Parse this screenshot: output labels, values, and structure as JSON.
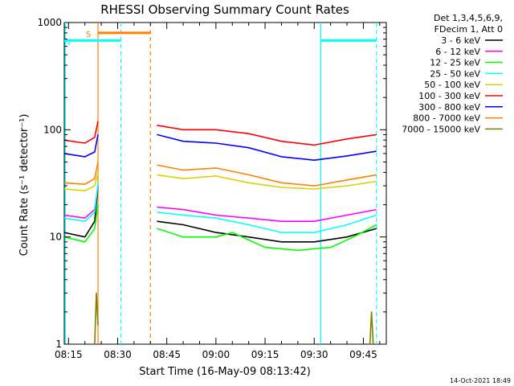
{
  "chart_data": {
    "type": "line",
    "title": "RHESSI Observing Summary Count Rates",
    "xlabel": "Start Time (16-May-09 08:13:42)",
    "ylabel": "Count Rate (s⁻¹ detector⁻¹)",
    "y_scale": "log",
    "ylim": [
      1,
      1000
    ],
    "xlim": [
      "08:13:42",
      "09:52:00"
    ],
    "x_ticks": [
      "08:15",
      "08:30",
      "08:45",
      "09:00",
      "09:15",
      "09:30",
      "09:45"
    ],
    "y_ticks": [
      "1",
      "10",
      "100",
      "1000"
    ],
    "legend_position": "top-right",
    "legend_header": [
      "Det 1,3,4,5,6,9,",
      "FDecim 1, Att 0"
    ],
    "legend": [
      {
        "name": "3 - 6 keV",
        "color": "#000000"
      },
      {
        "name": "6 - 12 keV",
        "color": "#ff00ff"
      },
      {
        "name": "12 - 25 keV",
        "color": "#00ff00"
      },
      {
        "name": "25 - 50 keV",
        "color": "#00ffff"
      },
      {
        "name": "50 - 100 keV",
        "color": "#d4d400"
      },
      {
        "name": "100 - 300 keV",
        "color": "#ff0000"
      },
      {
        "name": "300 - 800 keV",
        "color": "#0000ff"
      },
      {
        "name": "800 - 7000 keV",
        "color": "#ff8000"
      },
      {
        "name": "7000 - 15000 keV",
        "color": "#808000"
      }
    ],
    "series": [
      {
        "name": "3 - 6 keV",
        "color": "#000000",
        "segments": [
          [
            [
              "08:13:42",
              11
            ],
            [
              "08:20",
              10
            ],
            [
              "08:23",
              14
            ],
            [
              "08:24",
              30
            ]
          ],
          [
            [
              "08:42",
              14
            ],
            [
              "08:50",
              13
            ],
            [
              "09:00",
              11
            ],
            [
              "09:10",
              10
            ],
            [
              "09:20",
              9
            ],
            [
              "09:30",
              9
            ],
            [
              "09:40",
              10
            ],
            [
              "09:49",
              12
            ]
          ]
        ]
      },
      {
        "name": "6 - 12 keV",
        "color": "#ff00ff",
        "segments": [
          [
            [
              "08:13:42",
              16
            ],
            [
              "08:20",
              15
            ],
            [
              "08:23",
              18
            ],
            [
              "08:24",
              30
            ]
          ],
          [
            [
              "08:42",
              19
            ],
            [
              "08:50",
              18
            ],
            [
              "09:00",
              16
            ],
            [
              "09:10",
              15
            ],
            [
              "09:20",
              14
            ],
            [
              "09:30",
              14
            ],
            [
              "09:40",
              16
            ],
            [
              "09:49",
              18
            ]
          ]
        ]
      },
      {
        "name": "12 - 25 keV",
        "color": "#00ff00",
        "segments": [
          [
            [
              "08:13:42",
              10
            ],
            [
              "08:20",
              9
            ],
            [
              "08:23",
              12
            ],
            [
              "08:24",
              20
            ]
          ],
          [
            [
              "08:42",
              12
            ],
            [
              "08:50",
              10
            ],
            [
              "09:00",
              10
            ],
            [
              "09:05",
              11
            ],
            [
              "09:15",
              8
            ],
            [
              "09:25",
              7.5
            ],
            [
              "09:35",
              8
            ],
            [
              "09:42",
              10
            ],
            [
              "09:49",
              13
            ]
          ]
        ]
      },
      {
        "name": "25 - 50 keV",
        "color": "#00ffff",
        "segments": [
          [
            [
              "08:13:42",
              15
            ],
            [
              "08:20",
              14
            ],
            [
              "08:23",
              17
            ],
            [
              "08:24",
              32
            ]
          ],
          [
            [
              "08:42",
              17
            ],
            [
              "08:50",
              16
            ],
            [
              "09:00",
              15
            ],
            [
              "09:10",
              13
            ],
            [
              "09:20",
              11
            ],
            [
              "09:30",
              11
            ],
            [
              "09:40",
              13
            ],
            [
              "09:49",
              16
            ]
          ]
        ]
      },
      {
        "name": "50 - 100 keV",
        "color": "#d4d400",
        "segments": [
          [
            [
              "08:13:42",
              28
            ],
            [
              "08:20",
              27
            ],
            [
              "08:23",
              30
            ],
            [
              "08:24",
              40
            ]
          ],
          [
            [
              "08:42",
              38
            ],
            [
              "08:50",
              35
            ],
            [
              "09:00",
              37
            ],
            [
              "09:10",
              32
            ],
            [
              "09:20",
              29
            ],
            [
              "09:30",
              28
            ],
            [
              "09:40",
              30
            ],
            [
              "09:49",
              33
            ]
          ]
        ]
      },
      {
        "name": "100 - 300 keV",
        "color": "#ff0000",
        "segments": [
          [
            [
              "08:13:42",
              80
            ],
            [
              "08:20",
              75
            ],
            [
              "08:23",
              85
            ],
            [
              "08:24",
              120
            ]
          ],
          [
            [
              "08:42",
              110
            ],
            [
              "08:50",
              100
            ],
            [
              "09:00",
              100
            ],
            [
              "09:10",
              92
            ],
            [
              "09:20",
              78
            ],
            [
              "09:30",
              72
            ],
            [
              "09:40",
              82
            ],
            [
              "09:49",
              90
            ]
          ]
        ]
      },
      {
        "name": "300 - 800 keV",
        "color": "#0000ff",
        "segments": [
          [
            [
              "08:13:42",
              60
            ],
            [
              "08:20",
              56
            ],
            [
              "08:23",
              62
            ],
            [
              "08:24",
              90
            ]
          ],
          [
            [
              "08:42",
              90
            ],
            [
              "08:50",
              78
            ],
            [
              "09:00",
              75
            ],
            [
              "09:10",
              68
            ],
            [
              "09:20",
              56
            ],
            [
              "09:30",
              52
            ],
            [
              "09:40",
              57
            ],
            [
              "09:49",
              63
            ]
          ]
        ]
      },
      {
        "name": "800 - 7000 keV",
        "color": "#ff8000",
        "segments": [
          [
            [
              "08:13:42",
              32
            ],
            [
              "08:20",
              31
            ],
            [
              "08:23",
              35
            ],
            [
              "08:24",
              50
            ]
          ],
          [
            [
              "08:42",
              47
            ],
            [
              "08:50",
              42
            ],
            [
              "09:00",
              44
            ],
            [
              "09:10",
              38
            ],
            [
              "09:20",
              32
            ],
            [
              "09:30",
              30
            ],
            [
              "09:40",
              34
            ],
            [
              "09:49",
              38
            ]
          ]
        ]
      },
      {
        "name": "7000 - 15000 keV",
        "color": "#808000",
        "segments": [
          [
            [
              "08:23",
              1
            ],
            [
              "08:23:30",
              3
            ],
            [
              "08:24",
              1.5
            ]
          ],
          [
            [
              "09:47",
              1
            ],
            [
              "09:47:30",
              2
            ],
            [
              "09:48",
              1
            ]
          ]
        ]
      }
    ],
    "intervals": [
      {
        "label": "S",
        "start": "08:24",
        "end": "08:40",
        "y": 800,
        "color": "#ff8000"
      },
      {
        "label": "N",
        "start": "08:13:42",
        "end": "08:31",
        "y": 680,
        "color": "#00ffff"
      },
      {
        "label": "",
        "start": "09:32",
        "end": "09:49",
        "y": 680,
        "color": "#00ffff"
      }
    ],
    "vertical_markers": [
      {
        "time": "08:14",
        "color": "#00ffff",
        "style": "solid"
      },
      {
        "time": "08:24",
        "color": "#ff8000",
        "style": "solid"
      },
      {
        "time": "08:31",
        "color": "#00ffff",
        "style": "dashed"
      },
      {
        "time": "08:40",
        "color": "#ff8000",
        "style": "dashed"
      },
      {
        "time": "09:32",
        "color": "#00ffff",
        "style": "solid"
      },
      {
        "time": "09:49",
        "color": "#00ffff",
        "style": "dashed"
      }
    ],
    "footer_timestamp": "14-Oct-2021 18:49"
  }
}
